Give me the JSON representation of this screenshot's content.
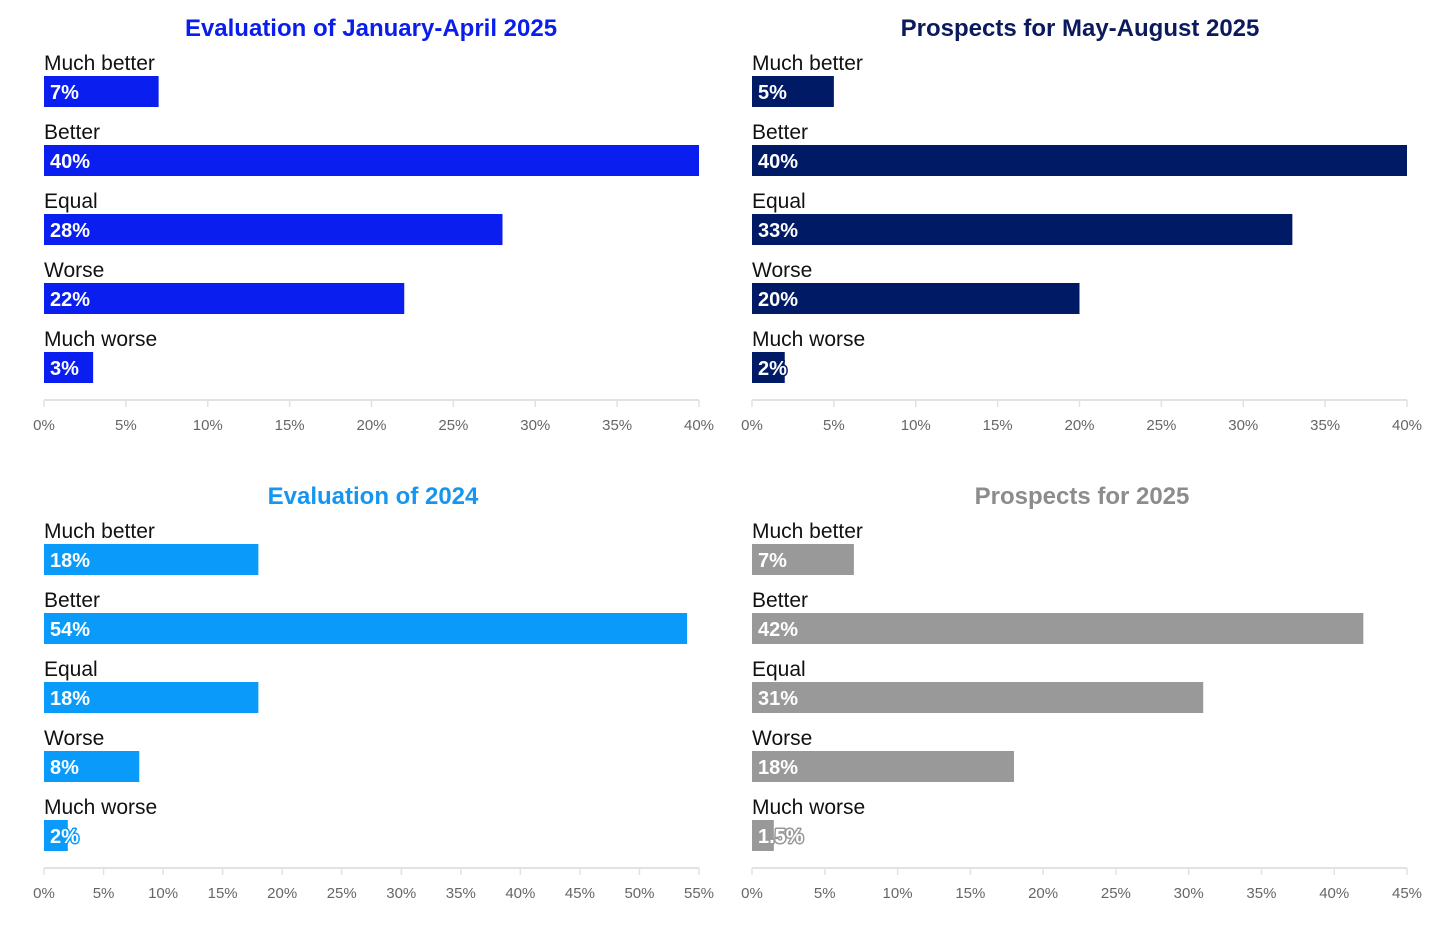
{
  "chart_data": [
    {
      "type": "bar",
      "orientation": "horizontal",
      "title": "Evaluation of January-April 2025",
      "title_color": "#0A1EEB",
      "bar_color": "#0A1EF0",
      "categories": [
        "Much better",
        "Better",
        "Equal",
        "Worse",
        "Much worse"
      ],
      "values": [
        7,
        40,
        28,
        22,
        3
      ],
      "value_labels": [
        "7%",
        "40%",
        "28%",
        "22%",
        "3%"
      ],
      "xlim": [
        0,
        40
      ],
      "xticks": [
        "0%",
        "5%",
        "10%",
        "15%",
        "20%",
        "25%",
        "30%",
        "35%",
        "40%"
      ],
      "xlabel": "",
      "ylabel": ""
    },
    {
      "type": "bar",
      "orientation": "horizontal",
      "title": "Prospects for May-August 2025",
      "title_color": "#0B1A5C",
      "bar_color": "#001A66",
      "categories": [
        "Much better",
        "Better",
        "Equal",
        "Worse",
        "Much worse"
      ],
      "values": [
        5,
        40,
        33,
        20,
        2
      ],
      "value_labels": [
        "5%",
        "40%",
        "33%",
        "20%",
        "2%"
      ],
      "xlim": [
        0,
        40
      ],
      "xticks": [
        "0%",
        "5%",
        "10%",
        "15%",
        "20%",
        "25%",
        "30%",
        "35%",
        "40%"
      ],
      "xlabel": "",
      "ylabel": ""
    },
    {
      "type": "bar",
      "orientation": "horizontal",
      "title": "Evaluation of 2024",
      "title_color": "#1696F0",
      "bar_color": "#0A9BFA",
      "categories": [
        "Much better",
        "Better",
        "Equal",
        "Worse",
        "Much worse"
      ],
      "values": [
        18,
        54,
        18,
        8,
        2
      ],
      "value_labels": [
        "18%",
        "54%",
        "18%",
        "8%",
        "2%"
      ],
      "xlim": [
        0,
        55
      ],
      "xticks": [
        "0%",
        "5%",
        "10%",
        "15%",
        "20%",
        "25%",
        "30%",
        "35%",
        "40%",
        "45%",
        "50%",
        "55%"
      ],
      "xlabel": "",
      "ylabel": ""
    },
    {
      "type": "bar",
      "orientation": "horizontal",
      "title": "Prospects for 2025",
      "title_color": "#8C8C8C",
      "bar_color": "#999999",
      "categories": [
        "Much better",
        "Better",
        "Equal",
        "Worse",
        "Much worse"
      ],
      "values": [
        7,
        42,
        31,
        18,
        1.5
      ],
      "value_labels": [
        "7%",
        "42%",
        "31%",
        "18%",
        "1.5%"
      ],
      "xlim": [
        0,
        45
      ],
      "xticks": [
        "0%",
        "5%",
        "10%",
        "15%",
        "20%",
        "25%",
        "30%",
        "35%",
        "40%",
        "45%"
      ],
      "xlabel": "",
      "ylabel": ""
    }
  ]
}
